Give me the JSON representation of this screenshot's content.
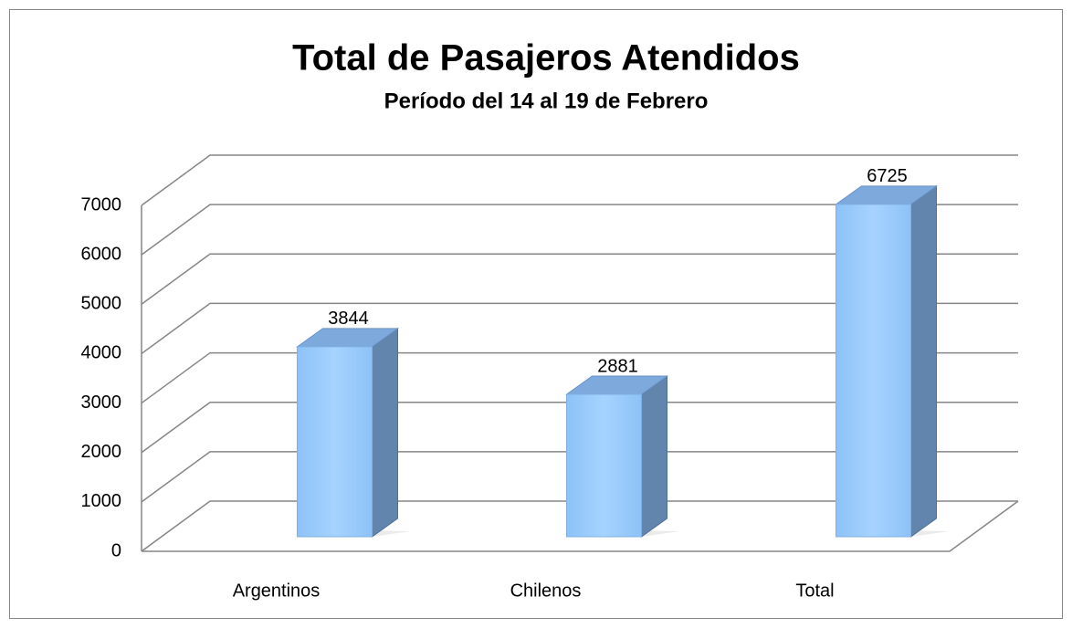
{
  "chart_data": {
    "type": "bar3d",
    "title": "Total de Pasajeros Atendidos",
    "subtitle": "Período del 14 al 19 de Febrero",
    "categories": [
      "Argentinos",
      "Chilenos",
      "Total"
    ],
    "values": [
      3844,
      2881,
      6725
    ],
    "color": "#99ccff",
    "ylim": [
      0,
      7000
    ],
    "yticks": [
      0,
      1000,
      2000,
      3000,
      4000,
      5000,
      6000,
      7000
    ],
    "grid": true
  }
}
